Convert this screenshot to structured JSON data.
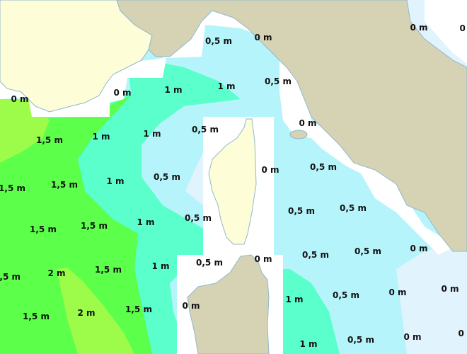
{
  "map": {
    "colors": {
      "land_france_corsica": "#fdfdd8",
      "land_italy_sardinia": "#d6d3b5",
      "coast_zone": "#ffffff",
      "wave_0m": "#e1f3fd",
      "wave_0_5m": "#b6f4fb",
      "wave_1m": "#5affcc",
      "wave_1_5m": "#5cff4a",
      "wave_2m": "#9dfc4a",
      "coastline": "#8fb8cc"
    },
    "labels": [
      "0 m",
      "0 m",
      "0,5 m",
      "0 m",
      "0 m",
      "0 m",
      "1 m",
      "1 m",
      "0,5 m",
      "1,5 m",
      "1 m",
      "1 m",
      "0,5 m",
      "0 m",
      "1,5 m",
      "1,5 m",
      "1 m",
      "0,5 m",
      "0 m",
      "0,5 m",
      "1,5 m",
      "1,5 m",
      "1 m",
      "0,5 m",
      "0,5 m",
      "0,5 m",
      "0 m",
      "1,5 m",
      "2 m",
      "1,5 m",
      "1 m",
      "0,5 m",
      "0 m",
      "0,5 m",
      "0,5 m",
      "1 m",
      "0,5 m",
      "0 m",
      "0 m",
      "1,5 m",
      "2 m",
      "1,5 m",
      "0 m",
      "1 m",
      "0,5 m",
      "0 m",
      "0 m"
    ]
  }
}
